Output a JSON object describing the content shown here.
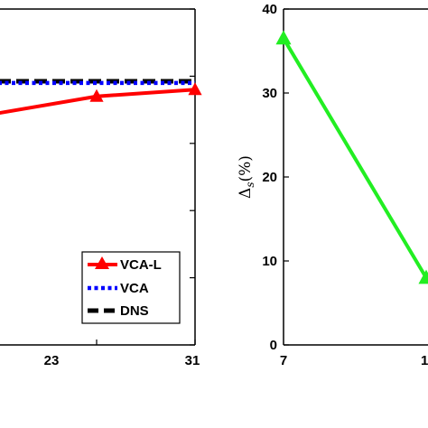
{
  "chart_data": [
    {
      "type": "line",
      "title": "",
      "xlabel": "",
      "ylabel": "",
      "x_ticks": [
        "23",
        "31"
      ],
      "xlim": [
        15,
        31
      ],
      "ylim": [
        0,
        1
      ],
      "series": [
        {
          "name": "VCA-L",
          "color": "#ff0000",
          "style": "solid",
          "marker": "triangle",
          "x": [
            15,
            23,
            31
          ],
          "y": [
            0.69,
            0.74,
            0.76
          ]
        },
        {
          "name": "VCA",
          "color": "#0000ff",
          "style": "dotted",
          "marker": "none",
          "x": [
            15,
            31
          ],
          "y": [
            0.78,
            0.78
          ]
        },
        {
          "name": "DNS",
          "color": "#000000",
          "style": "dashed",
          "marker": "none",
          "x": [
            15,
            31
          ],
          "y": [
            0.785,
            0.785
          ]
        }
      ],
      "legend": {
        "position": "bottom-right",
        "entries": [
          "VCA-L",
          "VCA",
          "DNS"
        ]
      },
      "grid": false
    },
    {
      "type": "line",
      "title": "",
      "xlabel": "",
      "ylabel": "Δ_s(%)",
      "ylabel_main": "Δ",
      "ylabel_sub": "s",
      "ylabel_unit": "(%)",
      "x_ticks": [
        "7",
        "1"
      ],
      "y_ticks": [
        "0",
        "10",
        "20",
        "30",
        "40"
      ],
      "ylim": [
        0,
        40
      ],
      "xlim": [
        7,
        15
      ],
      "series": [
        {
          "name": "",
          "color": "#22ee22",
          "style": "solid",
          "marker": "triangle",
          "x": [
            7,
            15
          ],
          "y": [
            36.5,
            8
          ]
        }
      ],
      "grid": false
    }
  ]
}
